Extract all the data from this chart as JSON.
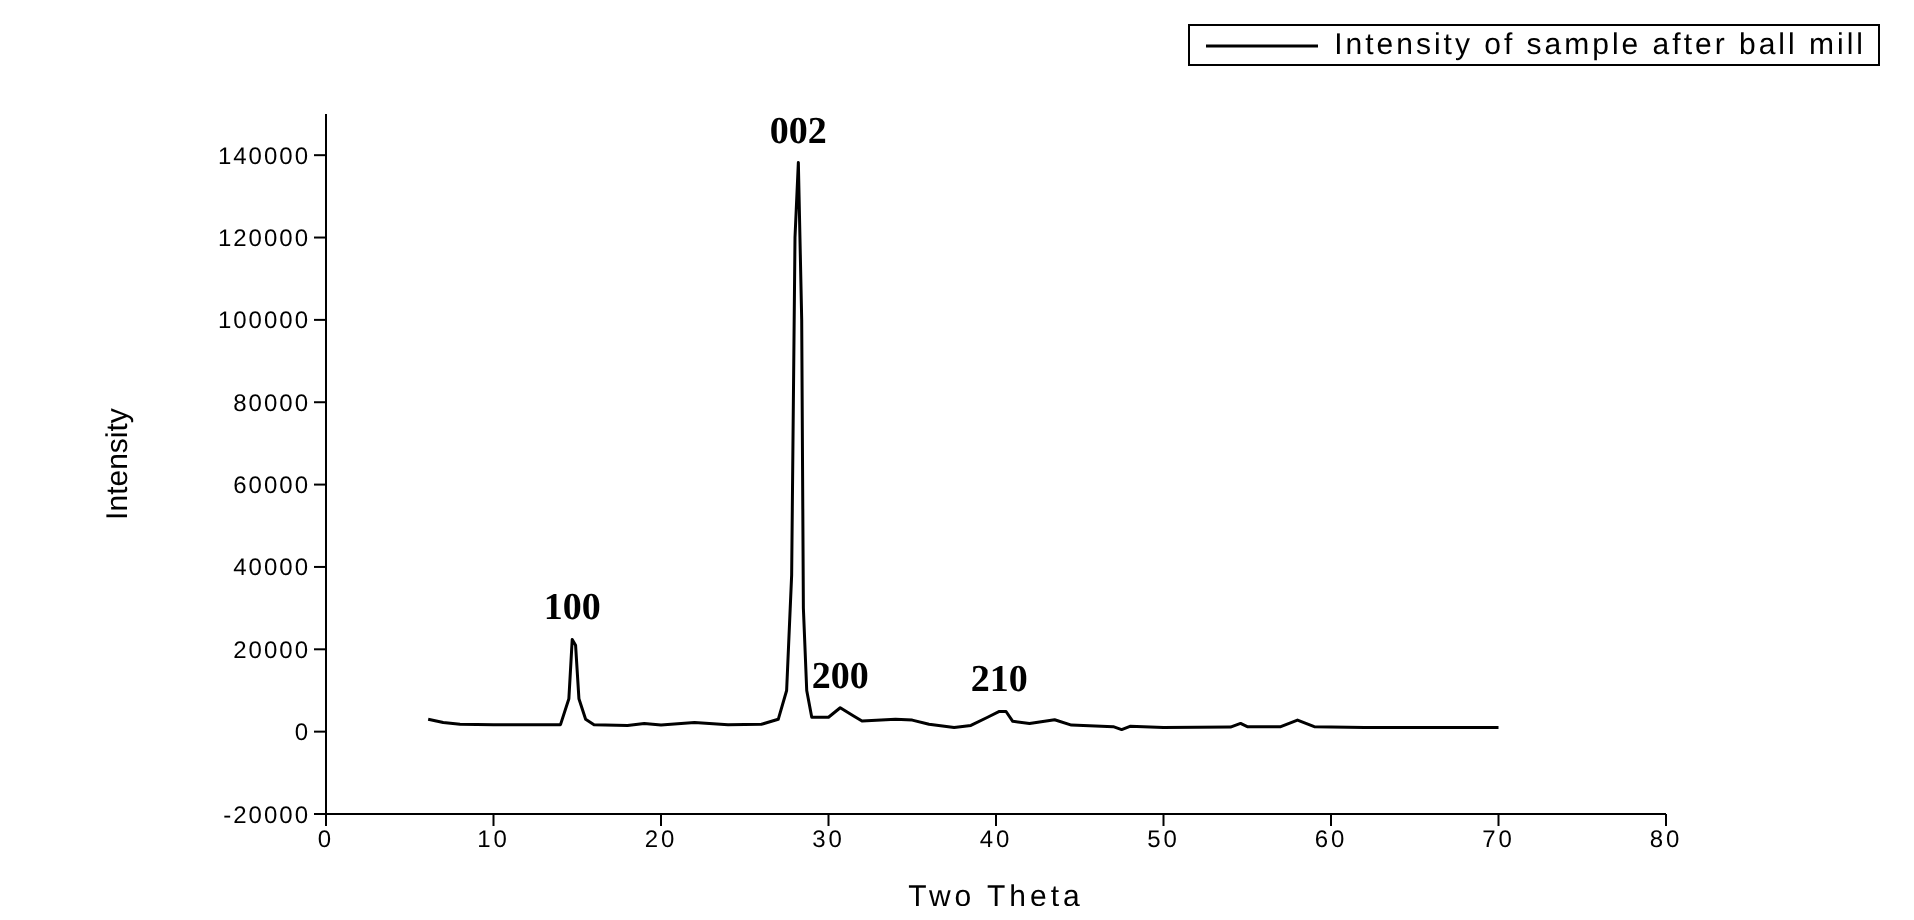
{
  "chart_data": {
    "type": "line",
    "xlabel": "Two Theta",
    "ylabel": "Intensity",
    "legend": "top right",
    "grid": false,
    "marker": "none",
    "line_style": "solid",
    "xlim": [
      0,
      80
    ],
    "xticks": [
      0,
      10,
      20,
      30,
      40,
      50,
      60,
      70,
      80
    ],
    "ylim": [
      -20000,
      150000
    ],
    "yticks": [
      -20000,
      0,
      20000,
      40000,
      60000,
      80000,
      100000,
      120000,
      140000
    ],
    "x": [
      6.1,
      7,
      8,
      10,
      12,
      14,
      14.5,
      14.7,
      14.9,
      15.1,
      15.5,
      16,
      18,
      19,
      20,
      22,
      24,
      26,
      27,
      27.5,
      27.8,
      28.0,
      28.2,
      28.4,
      28.5,
      28.7,
      29,
      30,
      30.7,
      31.5,
      32,
      34,
      35,
      36,
      37.5,
      38.5,
      39.5,
      40.2,
      40.6,
      41,
      42,
      43.5,
      44.5,
      47,
      47.5,
      48,
      50,
      54,
      54.6,
      55,
      57,
      58,
      59,
      62,
      66,
      70
    ],
    "series": [
      {
        "name": "Intensity of sample after ball mill",
        "color": "#000000",
        "values": [
          3000,
          2200,
          1800,
          1700,
          1700,
          1700,
          8000,
          22400,
          21000,
          8000,
          3000,
          1700,
          1500,
          2000,
          1600,
          2200,
          1700,
          1800,
          3000,
          10000,
          38000,
          120000,
          138200,
          100000,
          30000,
          10000,
          3500,
          3500,
          5800,
          3800,
          2600,
          3000,
          2800,
          1800,
          1000,
          1500,
          3500,
          4900,
          4900,
          2500,
          2000,
          2900,
          1600,
          1200,
          500,
          1300,
          1000,
          1100,
          2000,
          1200,
          1200,
          2800,
          1200,
          1000,
          1000,
          1000
        ]
      }
    ],
    "annotations": [
      {
        "text": "100",
        "x": 14.7,
        "y": 22400
      },
      {
        "text": "002",
        "x": 28.2,
        "y": 138200
      },
      {
        "text": "200",
        "x": 30.7,
        "y": 5800
      },
      {
        "text": "210",
        "x": 40.2,
        "y": 4900
      }
    ]
  }
}
